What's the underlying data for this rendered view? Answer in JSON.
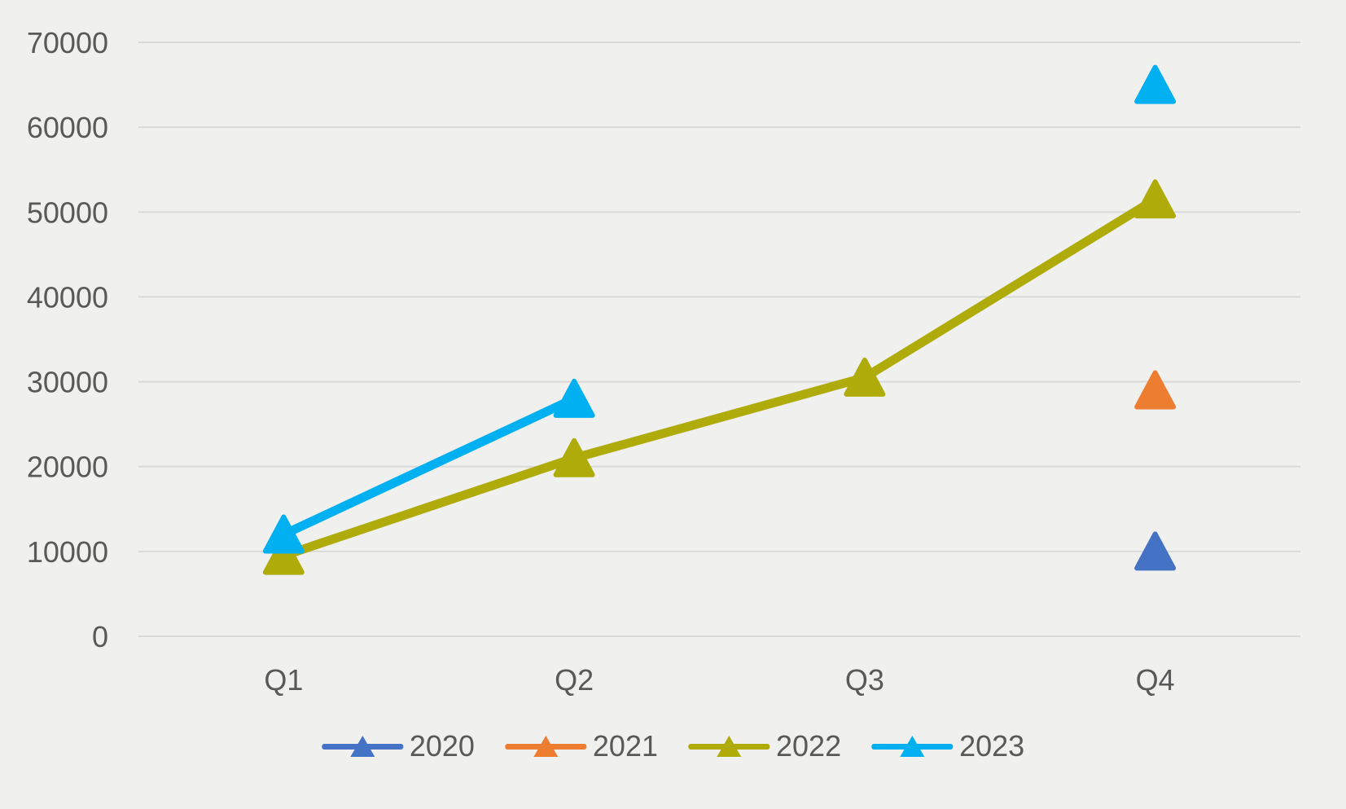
{
  "chart_data": {
    "type": "line",
    "title": "",
    "categories": [
      "Q1",
      "Q2",
      "Q3",
      "Q4"
    ],
    "series": [
      {
        "name": "2020",
        "color": "#4472C4",
        "values": [
          null,
          null,
          null,
          10000
        ]
      },
      {
        "name": "2021",
        "color": "#ED7D31",
        "values": [
          null,
          null,
          null,
          29000
        ]
      },
      {
        "name": "2022",
        "color": "#AFAB0B",
        "values": [
          9500,
          21000,
          30500,
          51500
        ]
      },
      {
        "name": "2023",
        "color": "#00B0F0",
        "values": [
          12000,
          28000,
          null,
          65000
        ]
      }
    ],
    "marker": "triangle",
    "xlabel": "",
    "ylabel": "",
    "ylim": [
      0,
      70000
    ],
    "yticks": [
      0,
      10000,
      20000,
      30000,
      40000,
      50000,
      60000,
      70000
    ],
    "ytick_labels": [
      "0",
      "10000",
      "20000",
      "30000",
      "40000",
      "50000",
      "60000",
      "70000"
    ],
    "grid": true,
    "legend_position": "bottom",
    "legend_entries": [
      "2020",
      "2021",
      "2022",
      "2023"
    ],
    "colors": {
      "background": "#F0F0EF",
      "gridline": "#D9D9D9",
      "label": "#595959"
    }
  }
}
